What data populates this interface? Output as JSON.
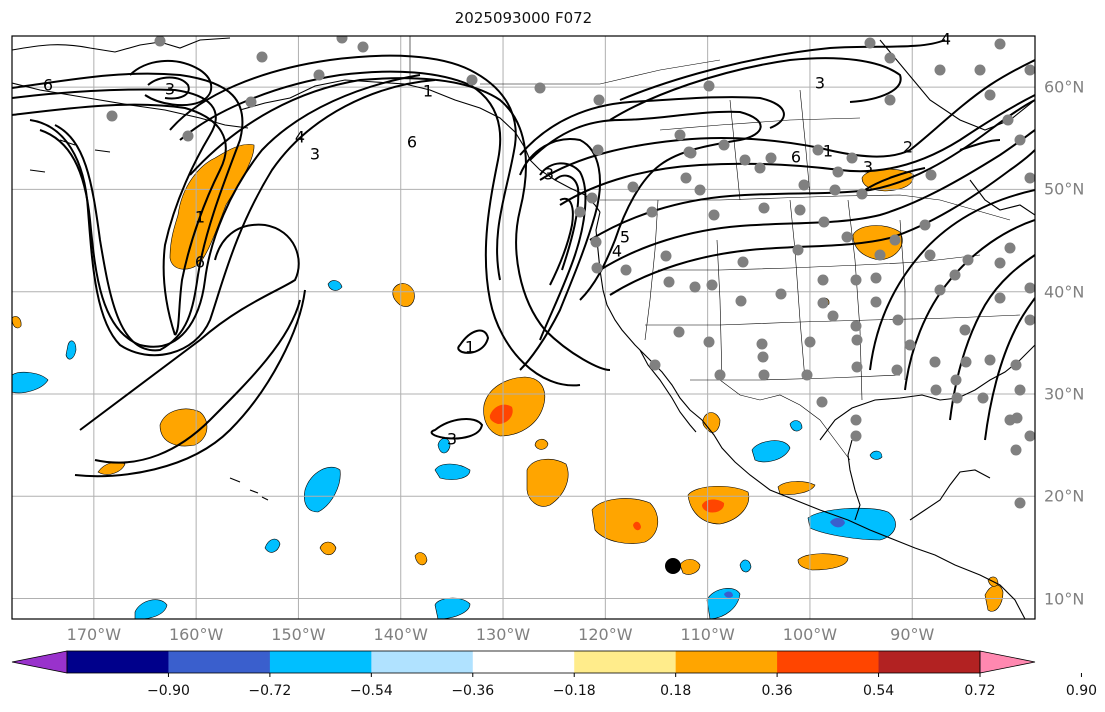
{
  "chart_data": {
    "type": "map-contour",
    "title": "2025093000 F072",
    "region": "North-East Pacific and North America",
    "lon_range": [
      -178,
      -78
    ],
    "lat_range": [
      8,
      65
    ],
    "lon_ticks": [
      -170,
      -160,
      -150,
      -140,
      -130,
      -120,
      -110,
      -100,
      -90
    ],
    "lat_ticks": [
      10,
      20,
      30,
      40,
      50,
      60
    ],
    "lon_tick_labels": [
      "170°W",
      "160°W",
      "150°W",
      "140°W",
      "130°W",
      "120°W",
      "110°W",
      "100°W",
      "90°W"
    ],
    "lat_tick_labels": [
      "10°N",
      "20°N",
      "30°N",
      "40°N",
      "50°N",
      "60°N"
    ],
    "colorbar": {
      "levels": [
        -0.9,
        -0.72,
        -0.54,
        -0.36,
        -0.18,
        0.18,
        0.36,
        0.54,
        0.72,
        0.9
      ],
      "tick_labels": [
        "−0.90",
        "−0.72",
        "−0.54",
        "−0.36",
        "−0.18",
        "0.18",
        "0.36",
        "0.54",
        "0.72",
        "0.90"
      ],
      "colors": [
        "#9932cc",
        "#00008b",
        "#3a5fcd",
        "#00bfff",
        "#b0e2ff",
        "#ffffff",
        "#ffec8b",
        "#ffa500",
        "#ff4500",
        "#b22222",
        "#ff88b0"
      ],
      "extend": "both"
    },
    "contour_labels": [
      "6",
      "3",
      "4",
      "1",
      "6",
      "3",
      "1",
      "6",
      "3",
      "1",
      "4",
      "5",
      "3",
      "6",
      "1",
      "3",
      "2",
      "4",
      "3"
    ],
    "station_count": 112,
    "marker": {
      "lon": -115.5,
      "lat": 13.1,
      "kind": "black dot"
    }
  }
}
